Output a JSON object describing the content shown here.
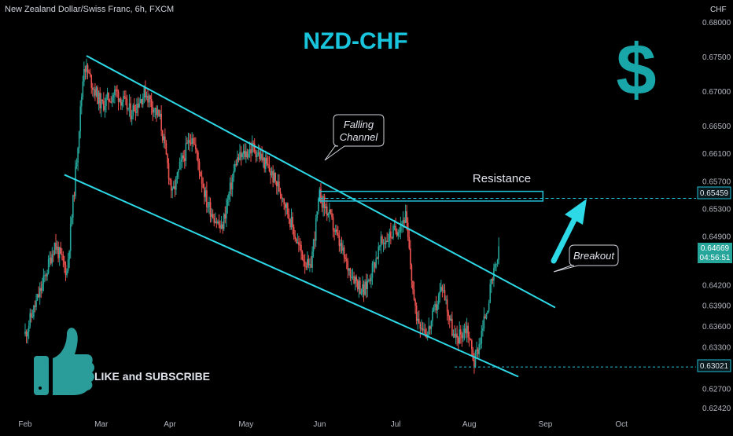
{
  "header": {
    "pair_title": "New Zealand Dollar/Swiss Franc, 6h, FXCM",
    "currency": "CHF"
  },
  "headline": "NZD-CHF",
  "dollar_symbol": "$",
  "annotations": {
    "falling_channel": [
      "Falling",
      "Channel"
    ],
    "resistance": "Resistance",
    "breakout": "Breakout"
  },
  "cta": {
    "text": "LIKE and SUBSCRIBE"
  },
  "price_labels": {
    "current": "0.64669",
    "countdown": "04:56:51",
    "resistance": "0.65459",
    "support": "0.63021"
  },
  "colors": {
    "background": "#000000",
    "bull": "#26a69a",
    "bear": "#ef5350",
    "channel": "#2dd9e6",
    "title": "#19c5dc",
    "dollar": "#19a6a8",
    "resistance_box": "#21c1d6",
    "thumb": "#2a9d9b",
    "axis_text": "#b2b5be",
    "current_price_bg": "#26a69a"
  },
  "chart_data": {
    "type": "candlestick",
    "title": "New Zealand Dollar/Swiss Franc, 6h, FXCM",
    "xlabel": "",
    "ylabel": "CHF",
    "ylim": [
      0.6242,
      0.681
    ],
    "y_ticks": [
      "0.68000",
      "0.67500",
      "0.67000",
      "0.66500",
      "0.66100",
      "0.65700",
      "0.65300",
      "0.64900",
      "0.64200",
      "0.63900",
      "0.63600",
      "0.63300",
      "0.62700",
      "0.62420"
    ],
    "x_ticks": [
      "Feb",
      "Mar",
      "Apr",
      "May",
      "Jun",
      "Jul",
      "Aug",
      "Sep",
      "Oct"
    ],
    "price_path": [
      [
        "Feb 01",
        0.635
      ],
      [
        "Feb 08",
        0.642
      ],
      [
        "Feb 13",
        0.648
      ],
      [
        "Feb 18",
        0.644
      ],
      [
        "Feb 21",
        0.656
      ],
      [
        "Feb 25",
        0.674
      ],
      [
        "Mar 01",
        0.668
      ],
      [
        "Mar 07",
        0.67
      ],
      [
        "Mar 13",
        0.667
      ],
      [
        "Mar 19",
        0.67
      ],
      [
        "Mar 25",
        0.666
      ],
      [
        "Mar 30",
        0.655
      ],
      [
        "Apr 05",
        0.659
      ],
      [
        "Apr 10",
        0.664
      ],
      [
        "Apr 16",
        0.654
      ],
      [
        "Apr 22",
        0.65
      ],
      [
        "Apr 28",
        0.66
      ],
      [
        "May 04",
        0.662
      ],
      [
        "May 10",
        0.659
      ],
      [
        "May 16",
        0.655
      ],
      [
        "May 22",
        0.648
      ],
      [
        "May 27",
        0.644
      ],
      [
        "Jun 01",
        0.655
      ],
      [
        "Jun 05",
        0.652
      ],
      [
        "Jun 12",
        0.645
      ],
      [
        "Jun 19",
        0.641
      ],
      [
        "Jun 26",
        0.648
      ],
      [
        "Jul 01",
        0.65
      ],
      [
        "Jul 05",
        0.652
      ],
      [
        "Jul 09",
        0.638
      ],
      [
        "Jul 14",
        0.635
      ],
      [
        "Jul 20",
        0.642
      ],
      [
        "Jul 25",
        0.634
      ],
      [
        "Jul 30",
        0.636
      ],
      [
        "Aug 03",
        0.631
      ],
      [
        "Aug 06",
        0.635
      ],
      [
        "Aug 10",
        0.642
      ],
      [
        "Aug 13",
        0.6467
      ]
    ],
    "series": [
      {
        "name": "Falling Channel upper",
        "points": [
          [
            "Feb 26",
            0.6752
          ],
          [
            "Sep 05",
            0.6388
          ]
        ]
      },
      {
        "name": "Falling Channel lower",
        "points": [
          [
            "Feb 17",
            0.658
          ],
          [
            "Aug 21",
            0.6288
          ]
        ]
      }
    ],
    "resistance_zone": {
      "label": "Resistance",
      "x": [
        "May 31",
        "Aug 31"
      ],
      "y": [
        0.6542,
        0.6556
      ],
      "level": 0.65459
    },
    "support_level": 0.63021,
    "current_price": 0.64669,
    "legend": "none",
    "grid": false
  }
}
